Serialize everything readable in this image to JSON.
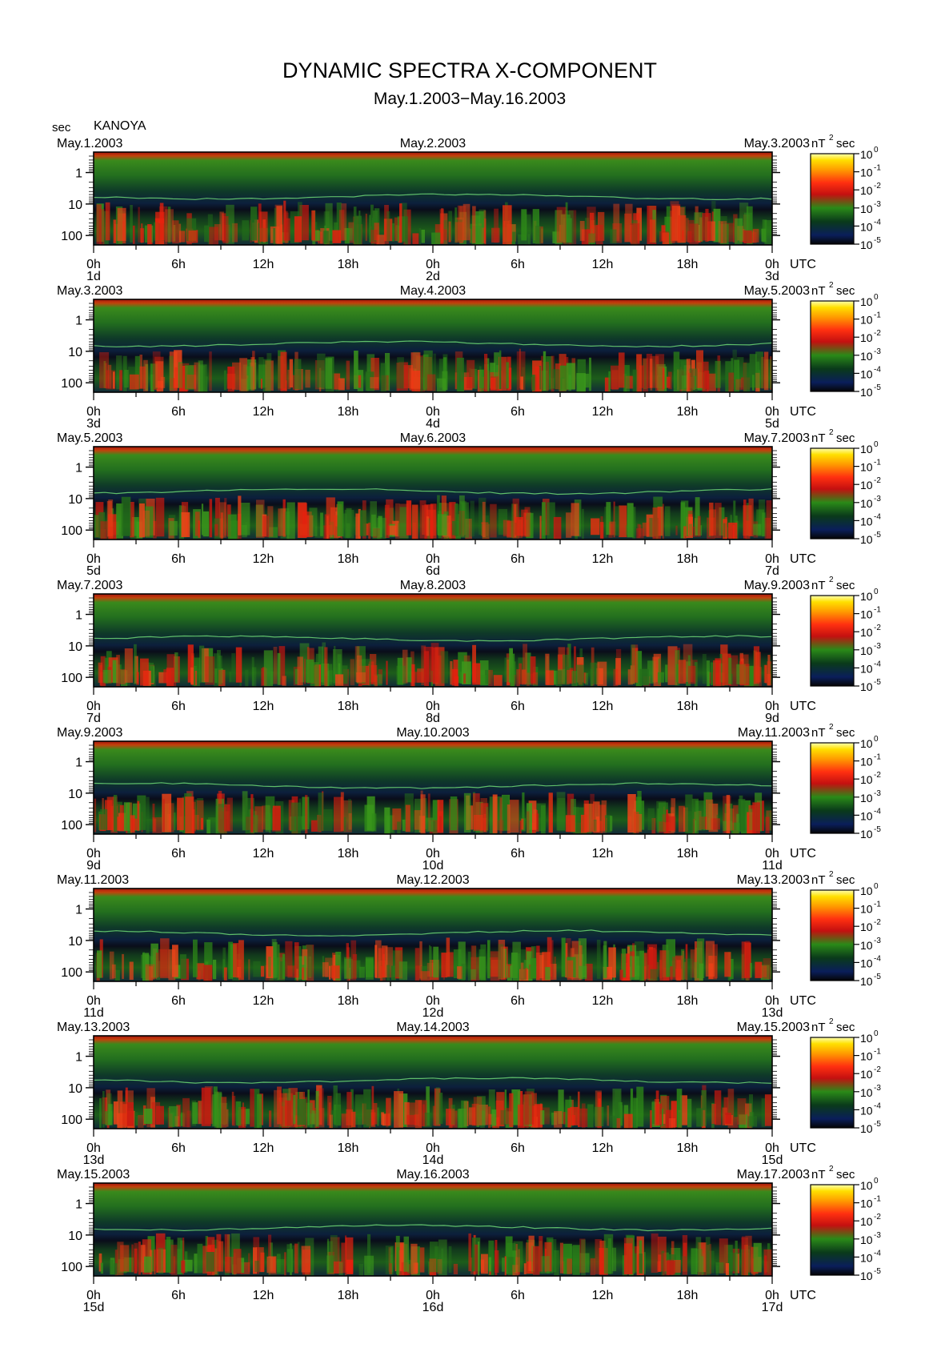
{
  "header": {
    "title": "DYNAMIC SPECTRA X-COMPONENT",
    "subtitle": "May.1.2003−May.16.2003",
    "unit_label": "sec",
    "station": "KANOYA"
  },
  "chart_data": {
    "type": "heatmap",
    "title": "DYNAMIC SPECTRA X-COMPONENT",
    "subtitle": "May.1.2003−May.16.2003",
    "station": "KANOYA",
    "ylabel": "sec",
    "y_scale": "log",
    "y_ticks": [
      "1",
      "10",
      "100"
    ],
    "x_ticks": [
      "0h",
      "6h",
      "12h",
      "18h",
      "0h",
      "6h",
      "12h",
      "18h",
      "0h"
    ],
    "x_unit": "UTC",
    "colorbar": {
      "unit_base": "nT",
      "unit_exp": "2",
      "unit_suffix": "sec",
      "scale": "log",
      "ticks": [
        {
          "base": "10",
          "exp": "0"
        },
        {
          "base": "10",
          "exp": "-1"
        },
        {
          "base": "10",
          "exp": "-2"
        },
        {
          "base": "10",
          "exp": "-3"
        },
        {
          "base": "10",
          "exp": "-4"
        },
        {
          "base": "10",
          "exp": "-5"
        }
      ],
      "colors": [
        "#0a0a0a",
        "#0c2a66",
        "#1e7a1e",
        "#e01010",
        "#ff8800",
        "#ffe000",
        "#ffffaa"
      ]
    },
    "panels": [
      {
        "left_date": "May.1.2003",
        "mid_date": "May.2.2003",
        "right_date": "May.3.2003",
        "day_labels": [
          "1d",
          "2d",
          "3d"
        ]
      },
      {
        "left_date": "May.3.2003",
        "mid_date": "May.4.2003",
        "right_date": "May.5.2003",
        "day_labels": [
          "3d",
          "4d",
          "5d"
        ]
      },
      {
        "left_date": "May.5.2003",
        "mid_date": "May.6.2003",
        "right_date": "May.7.2003",
        "day_labels": [
          "5d",
          "6d",
          "7d"
        ]
      },
      {
        "left_date": "May.7.2003",
        "mid_date": "May.8.2003",
        "right_date": "May.9.2003",
        "day_labels": [
          "7d",
          "8d",
          "9d"
        ]
      },
      {
        "left_date": "May.9.2003",
        "mid_date": "May.10.2003",
        "right_date": "May.11.2003",
        "day_labels": [
          "9d",
          "10d",
          "11d"
        ]
      },
      {
        "left_date": "May.11.2003",
        "mid_date": "May.12.2003",
        "right_date": "May.13.2003",
        "day_labels": [
          "11d",
          "12d",
          "13d"
        ]
      },
      {
        "left_date": "May.13.2003",
        "mid_date": "May.14.2003",
        "right_date": "May.15.2003",
        "day_labels": [
          "13d",
          "14d",
          "15d"
        ]
      },
      {
        "left_date": "May.15.2003",
        "mid_date": "May.16.2003",
        "right_date": "May.17.2003",
        "day_labels": [
          "15d",
          "16d",
          "17d"
        ]
      }
    ]
  }
}
